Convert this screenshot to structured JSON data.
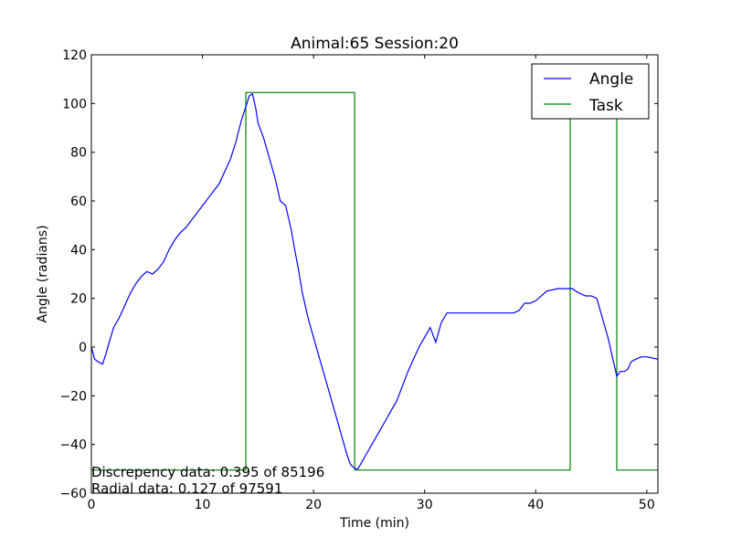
{
  "chart_data": {
    "type": "line",
    "title": "Animal:65  Session:20",
    "xlabel": "Time (min)",
    "ylabel": "Angle (radians)",
    "xlim": [
      0,
      51
    ],
    "ylim": [
      -60,
      120
    ],
    "x_ticks": [
      0,
      10,
      20,
      30,
      40,
      50
    ],
    "y_ticks": [
      -60,
      -40,
      -20,
      0,
      20,
      40,
      60,
      80,
      100,
      120
    ],
    "x_tick_labels": [
      "0",
      "10",
      "20",
      "30",
      "40",
      "50"
    ],
    "y_tick_labels": [
      "−60",
      "−40",
      "−20",
      "0",
      "20",
      "40",
      "60",
      "80",
      "100",
      "120"
    ],
    "legend_position": "top-right",
    "series": [
      {
        "name": "Angle",
        "color": "#0000ff",
        "x": [
          0,
          0.3,
          0.6,
          1.0,
          1.3,
          1.6,
          2.0,
          2.5,
          3.0,
          3.5,
          4.0,
          4.5,
          5.0,
          5.5,
          6.0,
          6.5,
          7.0,
          7.5,
          8.0,
          8.5,
          9.0,
          9.5,
          10.0,
          10.5,
          11.0,
          11.5,
          12.0,
          12.5,
          13.0,
          13.5,
          14.0,
          14.2,
          14.5,
          14.8,
          15.0,
          15.5,
          16.0,
          16.5,
          17.0,
          17.5,
          18.0,
          18.3,
          18.6,
          19.0,
          19.5,
          20.0,
          20.5,
          21.0,
          21.5,
          22.0,
          22.5,
          23.0,
          23.3,
          23.5,
          23.8,
          24.0,
          24.5,
          25.0,
          25.5,
          26.0,
          26.5,
          27.0,
          27.5,
          28.0,
          28.5,
          29.0,
          29.5,
          30.0,
          30.5,
          31.0,
          31.5,
          32.0,
          33.0,
          34.0,
          35.0,
          36.0,
          37.0,
          38.0,
          38.5,
          39.0,
          39.5,
          40.0,
          41.0,
          42.0,
          43.0,
          43.3,
          43.6,
          44.0,
          44.5,
          45.0,
          45.5,
          46.0,
          46.5,
          47.0,
          47.3,
          47.6,
          48.0,
          48.3,
          48.6,
          49.0,
          49.5,
          50.0,
          51.0
        ],
        "y": [
          0,
          -5,
          -6,
          -7,
          -3,
          2,
          8,
          12,
          17,
          22,
          26,
          29,
          31,
          30,
          32,
          35,
          40,
          44,
          47,
          49,
          52,
          55,
          58,
          61,
          64,
          67,
          72,
          77,
          84,
          93,
          100,
          103,
          104,
          98,
          92,
          86,
          78,
          70,
          60,
          58,
          48,
          40,
          33,
          22,
          12,
          4,
          -4,
          -12,
          -20,
          -28,
          -36,
          -44,
          -48,
          -49,
          -50,
          -50,
          -46,
          -42,
          -38,
          -34,
          -30,
          -26,
          -22,
          -16,
          -10,
          -5,
          0,
          4,
          8,
          2,
          10,
          14,
          14,
          14,
          14,
          14,
          14,
          14,
          15,
          18,
          18,
          19,
          23,
          24,
          24,
          24,
          23,
          22,
          21,
          21,
          20,
          12,
          4,
          -6,
          -12,
          -10,
          -10,
          -9,
          -6,
          -5,
          -4,
          -4,
          -5
        ]
      },
      {
        "name": "Task",
        "color": "#008000",
        "x": [
          0,
          13.9,
          13.9,
          23.7,
          23.7,
          43.1,
          43.1,
          47.3,
          47.3,
          51.0
        ],
        "y": [
          -50.5,
          -50.5,
          104.5,
          104.5,
          -50.5,
          -50.5,
          104.5,
          104.5,
          -50.5,
          -50.5
        ]
      }
    ],
    "annotations": [
      "Discrepency data: 0.395 of 85196",
      "Radial data: 0.127 of 97591"
    ]
  }
}
